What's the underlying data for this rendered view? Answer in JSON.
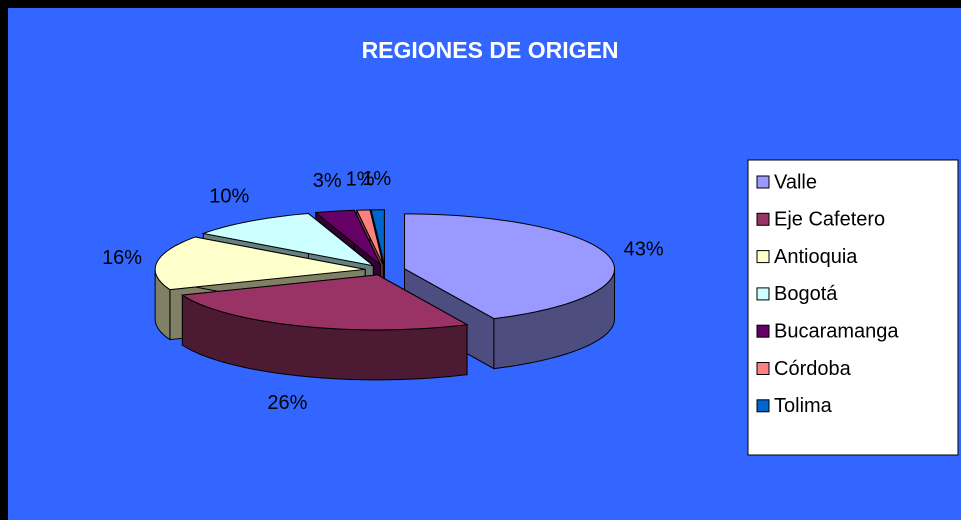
{
  "chart_data": {
    "type": "pie",
    "title": "REGIONES DE ORIGEN",
    "categories": [
      "Valle",
      "Eje Cafetero",
      "Antioquia",
      "Bogotá",
      "Bucaramanga",
      "Córdoba",
      "Tolima"
    ],
    "values": [
      43,
      26,
      16,
      10,
      3,
      1,
      1
    ],
    "value_labels": [
      "43%",
      "26%",
      "16%",
      "10%",
      "3%",
      "1%",
      "1%"
    ],
    "colors": [
      "#9999ff",
      "#993366",
      "#ffffcc",
      "#ccffff",
      "#660066",
      "#ff8080",
      "#0066cc"
    ],
    "background": "#3366ff",
    "legend": "right"
  }
}
